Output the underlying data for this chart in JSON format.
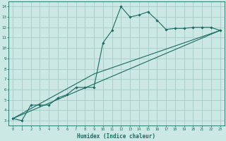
{
  "title": "",
  "xlabel": "Humidex (Indice chaleur)",
  "bg_color": "#cce8e4",
  "grid_color": "#a8ccc8",
  "line_color": "#1a6b60",
  "xlim": [
    -0.5,
    23.5
  ],
  "ylim": [
    2.5,
    14.5
  ],
  "xticks": [
    0,
    1,
    2,
    3,
    4,
    5,
    6,
    7,
    8,
    9,
    10,
    11,
    12,
    13,
    14,
    15,
    16,
    17,
    18,
    19,
    20,
    21,
    22,
    23
  ],
  "yticks": [
    3,
    4,
    5,
    6,
    7,
    8,
    9,
    10,
    11,
    12,
    13,
    14
  ],
  "line1_x": [
    0,
    1,
    2,
    3,
    4,
    5,
    6,
    7,
    8,
    9,
    10,
    11,
    12,
    13,
    14,
    15,
    16,
    17,
    18,
    19,
    20,
    21,
    22,
    23
  ],
  "line1_y": [
    3.2,
    3.0,
    4.5,
    4.5,
    4.5,
    5.2,
    5.5,
    6.2,
    6.2,
    6.2,
    10.5,
    11.7,
    14.0,
    13.0,
    13.2,
    13.5,
    12.7,
    11.8,
    11.9,
    11.9,
    12.0,
    12.0,
    12.0,
    11.7
  ],
  "line2_x": [
    0,
    9,
    10,
    23
  ],
  "line2_y": [
    3.2,
    7.5,
    7.8,
    11.7
  ],
  "line3_x": [
    0,
    23
  ],
  "line3_y": [
    3.2,
    11.7
  ]
}
